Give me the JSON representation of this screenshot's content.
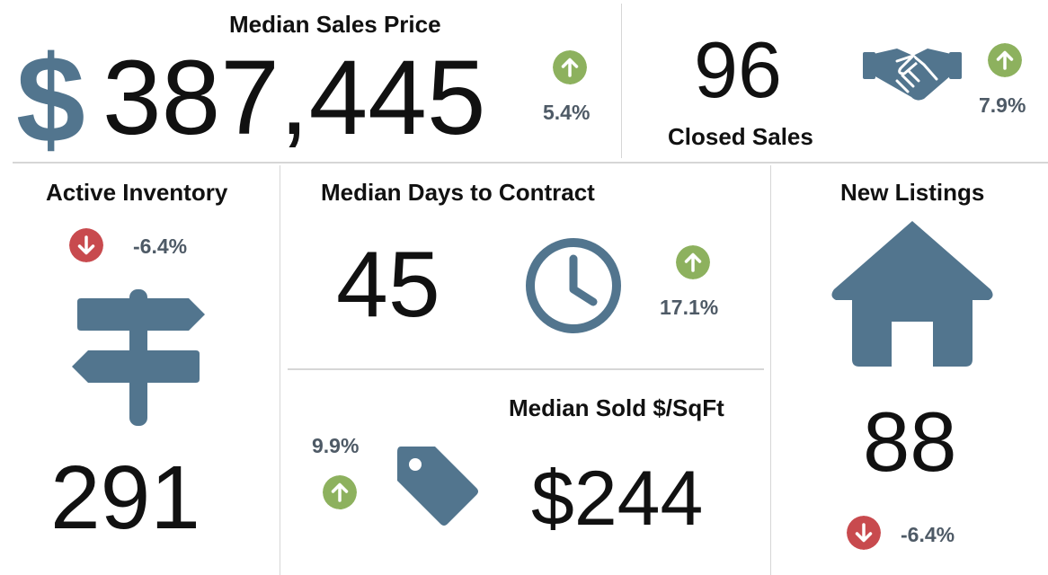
{
  "colors": {
    "icon": "#52758e",
    "up": "#8db15e",
    "down": "#c84a4e",
    "text": "#111111",
    "pct_text": "#4e5a66",
    "divider": "#d6d6d6"
  },
  "median_sales_price": {
    "title": "Median Sales Price",
    "currency_symbol": "$",
    "value": "387,445",
    "change": "5.4%",
    "direction": "up",
    "icon": "dollar-icon"
  },
  "closed_sales": {
    "title": "Closed Sales",
    "value": "96",
    "change": "7.9%",
    "direction": "up",
    "icon": "handshake-icon"
  },
  "active_inventory": {
    "title": "Active Inventory",
    "value": "291",
    "change": "-6.4%",
    "direction": "down",
    "icon": "signpost-icon"
  },
  "median_days_to_contract": {
    "title": "Median Days to Contract",
    "value": "45",
    "change": "17.1%",
    "direction": "up",
    "icon": "clock-icon"
  },
  "median_sold_sqft": {
    "title": "Median Sold $/SqFt",
    "value": "$244",
    "change": "9.9%",
    "direction": "up",
    "icon": "price-tag-icon"
  },
  "new_listings": {
    "title": "New Listings",
    "value": "88",
    "change": "-6.4%",
    "direction": "down",
    "icon": "house-icon"
  }
}
